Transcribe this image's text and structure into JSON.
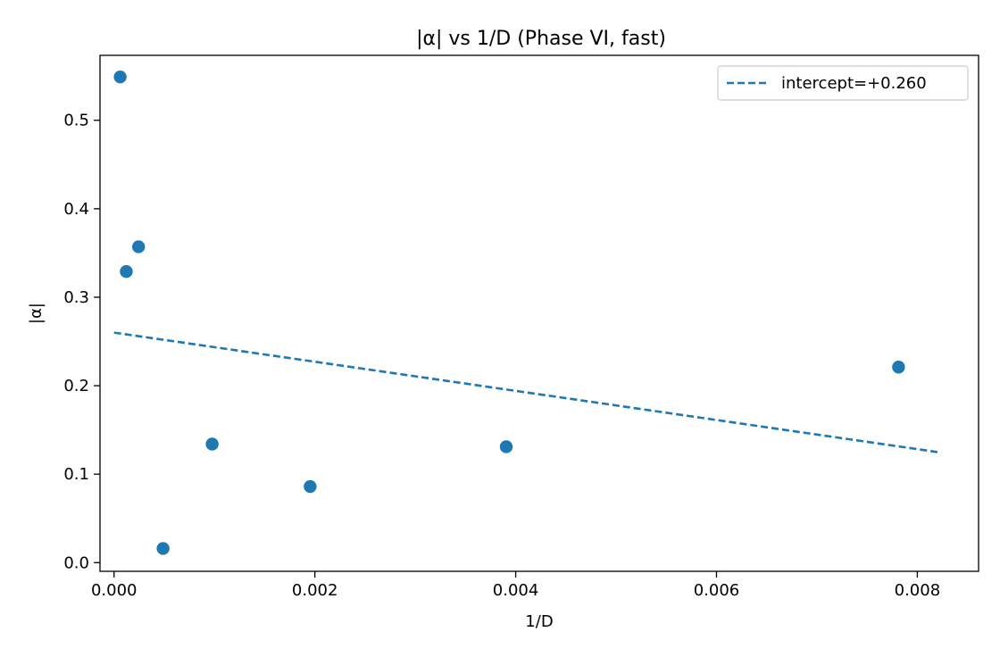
{
  "chart_data": {
    "type": "scatter",
    "title": "|α| vs 1/D (Phase VI, fast)",
    "xlabel": "1/D",
    "ylabel": "|α|",
    "xlim": [
      -0.00014,
      0.00861
    ],
    "ylim": [
      -0.0098,
      0.5734
    ],
    "xticks": [
      0.0,
      0.002,
      0.004,
      0.006,
      0.008
    ],
    "xtick_labels": [
      "0.000",
      "0.002",
      "0.004",
      "0.006",
      "0.008"
    ],
    "yticks": [
      0.0,
      0.1,
      0.2,
      0.3,
      0.4,
      0.5
    ],
    "ytick_labels": [
      "0.0",
      "0.1",
      "0.2",
      "0.3",
      "0.4",
      "0.5"
    ],
    "grid": false,
    "legend_position": "top-right",
    "color": "#1f77b4",
    "points": {
      "x": [
        6.1e-05,
        0.000122,
        0.000244,
        0.000488,
        0.000977,
        0.001953,
        0.003906,
        0.007813
      ],
      "y": [
        0.549,
        0.329,
        0.357,
        0.016,
        0.134,
        0.086,
        0.131,
        0.221
      ]
    },
    "fit_line": {
      "label": "intercept=+0.260",
      "style": "dashed",
      "x": [
        0.0,
        0.0082
      ],
      "y": [
        0.26,
        0.125
      ]
    }
  }
}
